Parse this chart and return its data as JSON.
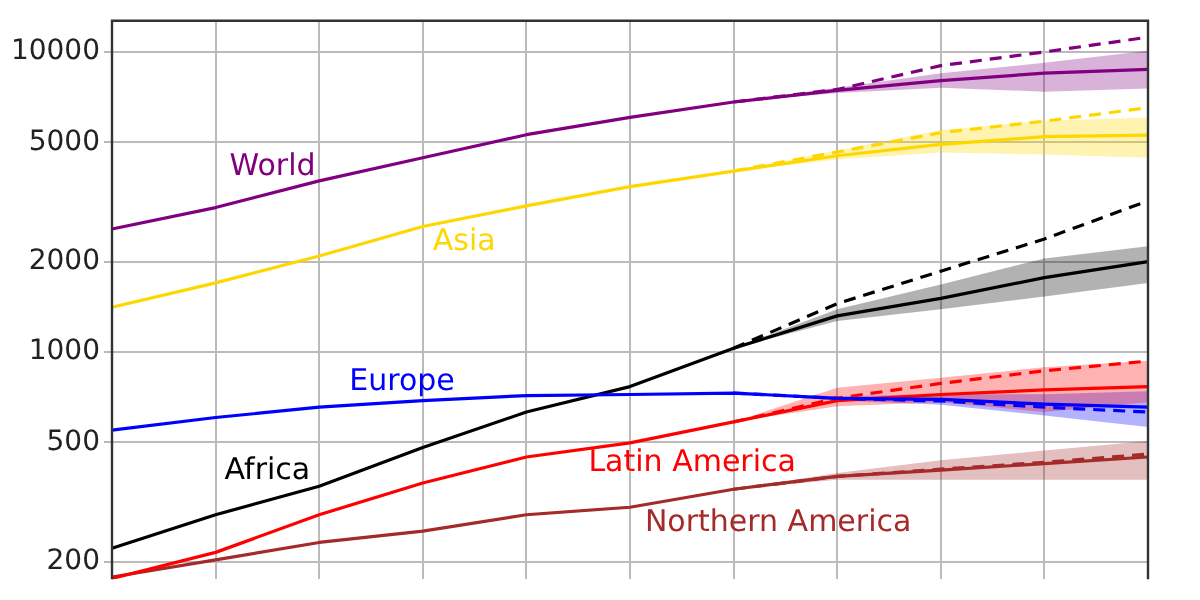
{
  "chart_data": {
    "type": "line",
    "categories": [
      null,
      null,
      null,
      null,
      null,
      null,
      null,
      null,
      null,
      null,
      null
    ],
    "log": "y",
    "ylim": [
      175,
      12700
    ],
    "yticks": [
      200,
      500,
      1000,
      2000,
      5000,
      10000
    ],
    "grid": true,
    "legend": false,
    "tick_labels": "y",
    "marker": "none",
    "series": [
      {
        "name": "World",
        "color": "#800080",
        "line_style": "solid",
        "values": [
          2570,
          3030,
          3720,
          4440,
          5300,
          6050,
          6810,
          7450,
          8020,
          8500,
          8750
        ],
        "lower": [
          null,
          null,
          null,
          null,
          null,
          null,
          6810,
          7300,
          7600,
          7370,
          7550
        ],
        "upper": [
          null,
          null,
          null,
          null,
          null,
          null,
          6810,
          7600,
          8500,
          9200,
          10100
        ]
      },
      {
        "color": "#800080",
        "line_style": "dashed",
        "values": [
          null,
          null,
          null,
          null,
          null,
          null,
          6810,
          7500,
          9000,
          10000,
          11200
        ]
      },
      {
        "name": "Asia",
        "color": "#ffd700",
        "line_style": "solid",
        "values": [
          1410,
          1700,
          2090,
          2620,
          3070,
          3560,
          4010,
          4510,
          4920,
          5220,
          5280
        ],
        "lower": [
          null,
          null,
          null,
          null,
          null,
          null,
          4010,
          4380,
          4620,
          4550,
          4440
        ],
        "upper": [
          null,
          null,
          null,
          null,
          null,
          null,
          4010,
          4700,
          5490,
          5900,
          6050
        ]
      },
      {
        "color": "#ffd700",
        "line_style": "dashed",
        "values": [
          null,
          null,
          null,
          null,
          null,
          null,
          4010,
          4640,
          5380,
          5880,
          6520
        ]
      },
      {
        "name": "Europe",
        "color": "#0000ff",
        "line_style": "solid",
        "values": [
          549,
          605,
          655,
          689,
          716,
          722,
          730,
          701,
          695,
          671,
          655
        ],
        "lower": [
          null,
          null,
          null,
          null,
          null,
          null,
          730,
          690,
          668,
          614,
          563
        ],
        "upper": [
          null,
          null,
          null,
          null,
          null,
          null,
          730,
          712,
          724,
          724,
          740
        ]
      },
      {
        "color": "#0000ff",
        "line_style": "dashed",
        "values": [
          null,
          null,
          null,
          null,
          null,
          null,
          730,
          701,
          687,
          655,
          631
        ]
      },
      {
        "name": "Africa",
        "color": "#000000",
        "line_style": "solid",
        "values": [
          222,
          287,
          357,
          481,
          631,
          767,
          1030,
          1320,
          1510,
          1770,
          2000
        ],
        "lower": [
          null,
          null,
          null,
          null,
          null,
          null,
          1030,
          1270,
          1390,
          1530,
          1700
        ],
        "upper": [
          null,
          null,
          null,
          null,
          null,
          null,
          1030,
          1390,
          1680,
          2050,
          2250
        ]
      },
      {
        "color": "#000000",
        "line_style": "dashed",
        "values": [
          null,
          null,
          null,
          null,
          null,
          null,
          1030,
          1450,
          1860,
          2380,
          3190
        ]
      },
      {
        "name": "Latin America",
        "color": "#ff0000",
        "line_style": "solid",
        "values": [
          176,
          215,
          287,
          366,
          447,
          498,
          585,
          689,
          722,
          748,
          767
        ],
        "lower": [
          null,
          null,
          null,
          null,
          null,
          null,
          585,
          660,
          680,
          631,
          680
        ],
        "upper": [
          null,
          null,
          null,
          null,
          null,
          null,
          585,
          760,
          821,
          890,
          935
        ]
      },
      {
        "color": "#ff0000",
        "line_style": "dashed",
        "values": [
          null,
          null,
          null,
          null,
          null,
          null,
          585,
          702,
          786,
          866,
          933
        ]
      },
      {
        "name": "Northern America",
        "color": "#a52a2a",
        "line_style": "solid",
        "values": [
          178,
          203,
          232,
          253,
          287,
          304,
          349,
          385,
          404,
          425,
          447
        ],
        "lower": [
          null,
          null,
          null,
          null,
          null,
          null,
          349,
          375,
          375,
          375,
          375
        ],
        "upper": [
          null,
          null,
          null,
          null,
          null,
          null,
          349,
          395,
          436,
          470,
          505
        ]
      },
      {
        "color": "#a52a2a",
        "line_style": "dashed",
        "values": [
          null,
          null,
          null,
          null,
          null,
          null,
          349,
          385,
          407,
          429,
          457
        ]
      }
    ]
  }
}
